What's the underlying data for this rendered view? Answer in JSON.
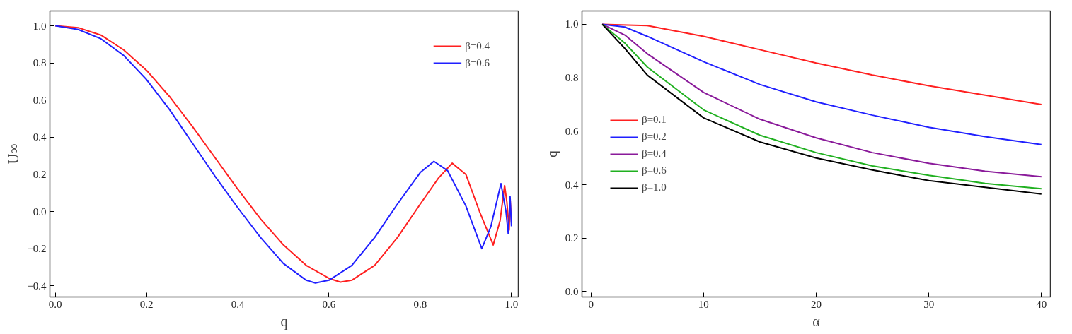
{
  "chart_data": [
    {
      "type": "line",
      "xlabel": "q",
      "ylabel": "U∞",
      "xlim": [
        -0.012,
        1.015
      ],
      "ylim": [
        -0.46,
        1.08
      ],
      "xticks": [
        {
          "value": 0,
          "label": "0.0"
        },
        {
          "value": 0.2,
          "label": "0.2"
        },
        {
          "value": 0.4,
          "label": "0.4"
        },
        {
          "value": 0.6,
          "label": "0.6"
        },
        {
          "value": 0.8,
          "label": "0.8"
        },
        {
          "value": 1.0,
          "label": "1.0"
        }
      ],
      "yticks": [
        {
          "value": -0.4,
          "label": "−0.4"
        },
        {
          "value": -0.2,
          "label": "−0.2"
        },
        {
          "value": 0,
          "label": "0.0"
        },
        {
          "value": 0.2,
          "label": "0.2"
        },
        {
          "value": 0.4,
          "label": "0.4"
        },
        {
          "value": 0.6,
          "label": "0.6"
        },
        {
          "value": 0.8,
          "label": "0.8"
        },
        {
          "value": 1.0,
          "label": "1.0"
        }
      ],
      "grid": false,
      "legend": "top right",
      "line_style": "solid",
      "series": [
        {
          "name": "β=0.4",
          "color": "#ff2020",
          "x": [
            0,
            0.05,
            0.1,
            0.15,
            0.2,
            0.25,
            0.3,
            0.35,
            0.4,
            0.45,
            0.5,
            0.55,
            0.6,
            0.625,
            0.65,
            0.7,
            0.75,
            0.8,
            0.84,
            0.87,
            0.9,
            0.93,
            0.96,
            0.975,
            0.985,
            0.99,
            0.995,
            0.997,
            1.0
          ],
          "values": [
            1,
            0.99,
            0.95,
            0.87,
            0.76,
            0.62,
            0.46,
            0.29,
            0.12,
            -0.04,
            -0.18,
            -0.29,
            -0.36,
            -0.38,
            -0.37,
            -0.29,
            -0.14,
            0.04,
            0.18,
            0.26,
            0.2,
            0.0,
            -0.18,
            -0.05,
            0.14,
            0.05,
            -0.1,
            0.07,
            -0.06
          ]
        },
        {
          "name": "β=0.6",
          "color": "#2020ff",
          "x": [
            0,
            0.05,
            0.1,
            0.15,
            0.2,
            0.25,
            0.3,
            0.35,
            0.4,
            0.45,
            0.5,
            0.55,
            0.57,
            0.6,
            0.65,
            0.7,
            0.75,
            0.8,
            0.83,
            0.86,
            0.9,
            0.935,
            0.955,
            0.977,
            0.988,
            0.993,
            0.997,
            1.0
          ],
          "values": [
            1,
            0.98,
            0.93,
            0.84,
            0.71,
            0.55,
            0.37,
            0.19,
            0.02,
            -0.14,
            -0.28,
            -0.37,
            -0.385,
            -0.37,
            -0.29,
            -0.14,
            0.04,
            0.21,
            0.27,
            0.22,
            0.03,
            -0.2,
            -0.08,
            0.15,
            0.0,
            -0.12,
            0.08,
            -0.08
          ]
        }
      ]
    },
    {
      "type": "line",
      "xlabel": "α",
      "ylabel": "q",
      "xlim": [
        -0.8,
        40.8
      ],
      "ylim": [
        -0.02,
        1.05
      ],
      "xticks": [
        0,
        10,
        20,
        30,
        40
      ],
      "yticks": [
        {
          "value": 0,
          "label": "0.0"
        },
        {
          "value": 0.2,
          "label": "0.2"
        },
        {
          "value": 0.4,
          "label": "0.4"
        },
        {
          "value": 0.6,
          "label": "0.6"
        },
        {
          "value": 0.8,
          "label": "0.8"
        },
        {
          "value": 1.0,
          "label": "1.0"
        }
      ],
      "grid": false,
      "legend": "left",
      "line_style": "solid",
      "series": [
        {
          "name": "β=0.1",
          "color": "#ff2020",
          "x": [
            1,
            5,
            10,
            15,
            20,
            25,
            30,
            35,
            40
          ],
          "values": [
            1,
            0.995,
            0.955,
            0.905,
            0.855,
            0.81,
            0.77,
            0.735,
            0.7
          ]
        },
        {
          "name": "β=0.2",
          "color": "#2020ff",
          "x": [
            1,
            3,
            5,
            10,
            15,
            20,
            25,
            30,
            35,
            40
          ],
          "values": [
            1,
            0.99,
            0.955,
            0.86,
            0.775,
            0.71,
            0.66,
            0.615,
            0.58,
            0.55
          ]
        },
        {
          "name": "β=0.4",
          "color": "#8a1a9a",
          "x": [
            1,
            3,
            5,
            10,
            15,
            20,
            25,
            30,
            35,
            40
          ],
          "values": [
            1,
            0.96,
            0.89,
            0.745,
            0.645,
            0.575,
            0.52,
            0.48,
            0.45,
            0.43
          ]
        },
        {
          "name": "β=0.6",
          "color": "#20b020",
          "x": [
            1,
            3,
            5,
            10,
            15,
            20,
            25,
            30,
            35,
            40
          ],
          "values": [
            1,
            0.93,
            0.84,
            0.68,
            0.585,
            0.52,
            0.47,
            0.435,
            0.405,
            0.385
          ]
        },
        {
          "name": "β=1.0",
          "color": "#000000",
          "x": [
            1,
            3,
            5,
            10,
            15,
            20,
            25,
            30,
            35,
            40
          ],
          "values": [
            1,
            0.91,
            0.81,
            0.65,
            0.56,
            0.5,
            0.455,
            0.415,
            0.39,
            0.365
          ]
        }
      ]
    }
  ]
}
